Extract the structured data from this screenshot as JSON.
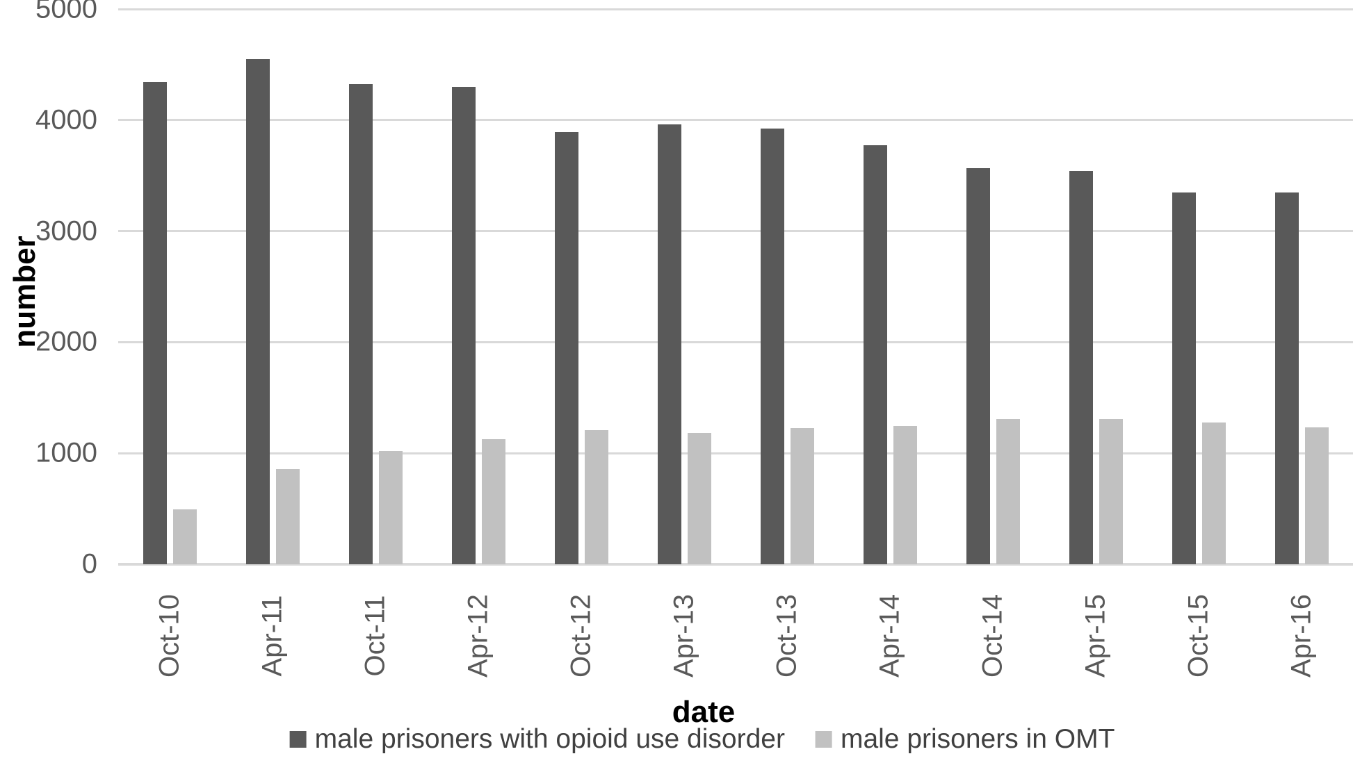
{
  "chart_data": {
    "type": "bar",
    "title": "",
    "xlabel": "date",
    "ylabel": "number",
    "categories": [
      "Oct-10",
      "Apr-11",
      "Oct-11",
      "Apr-12",
      "Oct-12",
      "Apr-13",
      "Oct-13",
      "Apr-14",
      "Oct-14",
      "Apr-15",
      "Oct-15",
      "Apr-16"
    ],
    "series": [
      {
        "name": "male prisoners with opioid use disorder",
        "color": "#595959",
        "values": [
          4340,
          4550,
          4325,
          4300,
          3895,
          3960,
          3925,
          3775,
          3570,
          3545,
          3345,
          3350
        ]
      },
      {
        "name": "male prisoners in OMT",
        "color": "#c1c1c1",
        "values": [
          495,
          855,
          1020,
          1125,
          1210,
          1180,
          1225,
          1245,
          1305,
          1310,
          1275,
          1230
        ]
      }
    ],
    "ylim": [
      0,
      5000
    ],
    "yticks": [
      0,
      1000,
      2000,
      3000,
      4000,
      5000
    ],
    "grid": true,
    "legend_position": "bottom",
    "x_tick_rotation_deg": -90,
    "colors": {
      "gridline": "#d9d9d9",
      "zero_axis_line": "#d9d9d9",
      "tick_text": "#595959",
      "axis_title_text": "#000000",
      "legend_text": "#404040",
      "background": "#ffffff"
    }
  }
}
